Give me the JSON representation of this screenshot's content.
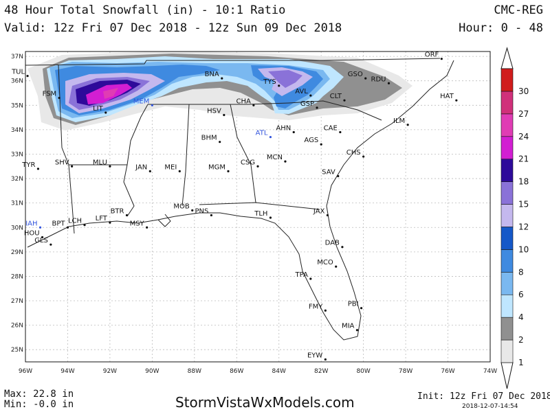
{
  "header": {
    "title": "48 Hour Total Snowfall (in) - 10:1 Ratio",
    "model": "CMC-REG",
    "valid": "Valid: 12z Fri 07 Dec 2018 - 12z Sun 09 Dec 2018",
    "hours": "Hour: 0 - 48"
  },
  "footer": {
    "max": "Max: 22.8 in",
    "min": "Min: -0.0 in",
    "site": "StormVistaWxModels.com",
    "init": "Init: 12z Fri 07 Dec 2018",
    "stamp": "2018-12-07-14:54"
  },
  "axes": {
    "lon_labels": [
      "96W",
      "94W",
      "92W",
      "90W",
      "88W",
      "86W",
      "84W",
      "82W",
      "80W",
      "78W",
      "76W",
      "74W"
    ],
    "lat_labels": [
      "37N",
      "36N",
      "35N",
      "34N",
      "33N",
      "32N",
      "31N",
      "30N",
      "29N",
      "28N",
      "27N",
      "26N",
      "25N"
    ]
  },
  "legend": {
    "levels": [
      {
        "label": "1",
        "color": "#e8e8e8"
      },
      {
        "label": "2",
        "color": "#909090"
      },
      {
        "label": "4",
        "color": "#bfe6ff"
      },
      {
        "label": "6",
        "color": "#7ab8f0"
      },
      {
        "label": "8",
        "color": "#3f8ae0"
      },
      {
        "label": "10",
        "color": "#1558c8"
      },
      {
        "label": "12",
        "color": "#c4b8ee"
      },
      {
        "label": "15",
        "color": "#8a72d8"
      },
      {
        "label": "18",
        "color": "#2e0a9a"
      },
      {
        "label": "21",
        "color": "#d21ed2"
      },
      {
        "label": "24",
        "color": "#e03cb4"
      },
      {
        "label": "27",
        "color": "#d0307a"
      },
      {
        "label": "30",
        "color": "#d01c1c"
      }
    ]
  },
  "cities": [
    {
      "code": "ORF",
      "lon": -76.3,
      "lat": 36.9,
      "hl": false
    },
    {
      "code": "TUL",
      "lon": -95.9,
      "lat": 36.2,
      "hl": false
    },
    {
      "code": "BNA",
      "lon": -86.7,
      "lat": 36.1,
      "hl": false
    },
    {
      "code": "TYS",
      "lon": -84.0,
      "lat": 35.8,
      "hl": false
    },
    {
      "code": "GSO",
      "lon": -79.9,
      "lat": 36.1,
      "hl": false
    },
    {
      "code": "RDU",
      "lon": -78.8,
      "lat": 35.9,
      "hl": false
    },
    {
      "code": "FSM",
      "lon": -94.4,
      "lat": 35.3,
      "hl": false
    },
    {
      "code": "LIT",
      "lon": -92.2,
      "lat": 34.7,
      "hl": false
    },
    {
      "code": "MEM",
      "lon": -90.0,
      "lat": 35.0,
      "hl": true
    },
    {
      "code": "CHA",
      "lon": -85.2,
      "lat": 35.0,
      "hl": false
    },
    {
      "code": "AVL",
      "lon": -82.5,
      "lat": 35.4,
      "hl": false
    },
    {
      "code": "CLT",
      "lon": -80.9,
      "lat": 35.2,
      "hl": false
    },
    {
      "code": "HAT",
      "lon": -75.6,
      "lat": 35.2,
      "hl": false
    },
    {
      "code": "GSP",
      "lon": -82.2,
      "lat": 34.9,
      "hl": false
    },
    {
      "code": "HSV",
      "lon": -86.6,
      "lat": 34.6,
      "hl": false
    },
    {
      "code": "ATL",
      "lon": -84.4,
      "lat": 33.7,
      "hl": true
    },
    {
      "code": "AHN",
      "lon": -83.3,
      "lat": 33.9,
      "hl": false
    },
    {
      "code": "CAE",
      "lon": -81.1,
      "lat": 33.9,
      "hl": false
    },
    {
      "code": "ILM",
      "lon": -77.9,
      "lat": 34.2,
      "hl": false
    },
    {
      "code": "BHM",
      "lon": -86.8,
      "lat": 33.5,
      "hl": false
    },
    {
      "code": "AGS",
      "lon": -82.0,
      "lat": 33.4,
      "hl": false
    },
    {
      "code": "CHS",
      "lon": -80.0,
      "lat": 32.9,
      "hl": false
    },
    {
      "code": "TYR",
      "lon": -95.4,
      "lat": 32.4,
      "hl": false
    },
    {
      "code": "SHV",
      "lon": -93.8,
      "lat": 32.5,
      "hl": false
    },
    {
      "code": "MLU",
      "lon": -92.0,
      "lat": 32.5,
      "hl": false
    },
    {
      "code": "JAN",
      "lon": -90.1,
      "lat": 32.3,
      "hl": false
    },
    {
      "code": "MEI",
      "lon": -88.7,
      "lat": 32.3,
      "hl": false
    },
    {
      "code": "MGM",
      "lon": -86.4,
      "lat": 32.3,
      "hl": false
    },
    {
      "code": "CSG",
      "lon": -85.0,
      "lat": 32.5,
      "hl": false
    },
    {
      "code": "MCN",
      "lon": -83.7,
      "lat": 32.7,
      "hl": false
    },
    {
      "code": "SAV",
      "lon": -81.2,
      "lat": 32.1,
      "hl": false
    },
    {
      "code": "BTR",
      "lon": -91.2,
      "lat": 30.5,
      "hl": false
    },
    {
      "code": "MOB",
      "lon": -88.1,
      "lat": 30.7,
      "hl": false
    },
    {
      "code": "PNS",
      "lon": -87.2,
      "lat": 30.5,
      "hl": false
    },
    {
      "code": "TLH",
      "lon": -84.4,
      "lat": 30.4,
      "hl": false
    },
    {
      "code": "JAX",
      "lon": -81.7,
      "lat": 30.5,
      "hl": false
    },
    {
      "code": "LCH",
      "lon": -93.2,
      "lat": 30.1,
      "hl": false
    },
    {
      "code": "LFT",
      "lon": -92.0,
      "lat": 30.2,
      "hl": false
    },
    {
      "code": "BPT",
      "lon": -94.0,
      "lat": 30.0,
      "hl": false
    },
    {
      "code": "IAH",
      "lon": -95.3,
      "lat": 30.0,
      "hl": true
    },
    {
      "code": "MSY",
      "lon": -90.25,
      "lat": 30.0,
      "hl": false
    },
    {
      "code": "HOU",
      "lon": -95.2,
      "lat": 29.6,
      "hl": false
    },
    {
      "code": "GLS",
      "lon": -94.8,
      "lat": 29.3,
      "hl": false
    },
    {
      "code": "DAB",
      "lon": -81.0,
      "lat": 29.2,
      "hl": false
    },
    {
      "code": "MCO",
      "lon": -81.3,
      "lat": 28.4,
      "hl": false
    },
    {
      "code": "TPA",
      "lon": -82.5,
      "lat": 27.9,
      "hl": false
    },
    {
      "code": "PBI",
      "lon": -80.1,
      "lat": 26.7,
      "hl": false
    },
    {
      "code": "FMY",
      "lon": -81.8,
      "lat": 26.6,
      "hl": false
    },
    {
      "code": "MIA",
      "lon": -80.3,
      "lat": 25.8,
      "hl": false
    },
    {
      "code": "EYW",
      "lon": -81.8,
      "lat": 24.6,
      "hl": false
    }
  ]
}
